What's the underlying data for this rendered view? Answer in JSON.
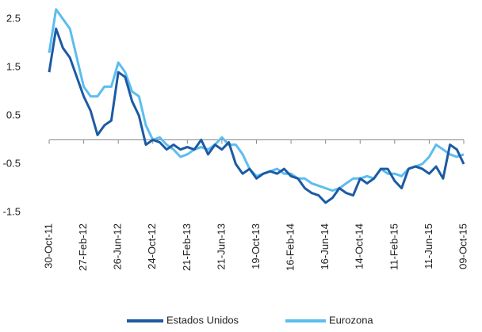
{
  "chart_data": {
    "type": "line",
    "categories": [
      "30-Oct-11",
      null,
      null,
      null,
      null,
      "27-Feb-12",
      null,
      null,
      null,
      null,
      "26-Jun-12",
      null,
      null,
      null,
      null,
      "24-Oct-12",
      null,
      null,
      null,
      null,
      "21-Feb-13",
      null,
      null,
      null,
      null,
      "21-Jun-13",
      null,
      null,
      null,
      null,
      "19-Oct-13",
      null,
      null,
      null,
      null,
      "16-Feb-14",
      null,
      null,
      null,
      null,
      "16-Jun-14",
      null,
      null,
      null,
      null,
      "14-Oct-14",
      null,
      null,
      null,
      null,
      "11-Feb-15",
      null,
      null,
      null,
      null,
      "11-Jun-15",
      null,
      null,
      null,
      null,
      "09-Oct-15"
    ],
    "series": [
      {
        "name": "Estados Unidos",
        "color": "#1c5ba3",
        "values": [
          1.4,
          2.3,
          1.9,
          1.7,
          1.3,
          0.9,
          0.6,
          0.1,
          0.3,
          0.4,
          1.4,
          1.3,
          0.8,
          0.5,
          -0.1,
          0.0,
          -0.05,
          -0.2,
          -0.1,
          -0.2,
          -0.15,
          -0.2,
          0.0,
          -0.3,
          -0.1,
          -0.2,
          -0.05,
          -0.5,
          -0.7,
          -0.6,
          -0.8,
          -0.7,
          -0.65,
          -0.7,
          -0.6,
          -0.75,
          -0.8,
          -1.0,
          -1.1,
          -1.15,
          -1.3,
          -1.2,
          -1.0,
          -1.1,
          -1.15,
          -0.8,
          -0.9,
          -0.8,
          -0.6,
          -0.6,
          -0.85,
          -1.0,
          -0.6,
          -0.55,
          -0.6,
          -0.7,
          -0.55,
          -0.8,
          -0.1,
          -0.2,
          -0.5
        ]
      },
      {
        "name": "Eurozona",
        "color": "#5cbdf0",
        "values": [
          1.8,
          2.7,
          2.5,
          2.3,
          1.7,
          1.1,
          0.9,
          0.9,
          1.1,
          1.1,
          1.6,
          1.4,
          1.0,
          0.9,
          0.3,
          0.0,
          0.05,
          -0.1,
          -0.2,
          -0.35,
          -0.3,
          -0.2,
          -0.15,
          -0.2,
          -0.1,
          0.05,
          -0.1,
          -0.1,
          -0.3,
          -0.6,
          -0.75,
          -0.7,
          -0.65,
          -0.6,
          -0.7,
          -0.7,
          -0.8,
          -0.8,
          -0.9,
          -0.95,
          -1.0,
          -1.05,
          -1.0,
          -0.9,
          -0.8,
          -0.8,
          -0.75,
          -0.8,
          -0.6,
          -0.7,
          -0.7,
          -0.75,
          -0.6,
          -0.55,
          -0.5,
          -0.35,
          -0.1,
          -0.2,
          -0.3,
          -0.35,
          -0.3
        ]
      }
    ],
    "ylim": [
      -1.5,
      2.75
    ],
    "yticks": [
      -1.5,
      -0.5,
      0.5,
      1.5,
      2.5
    ],
    "grid": false,
    "legend": "bottom"
  }
}
